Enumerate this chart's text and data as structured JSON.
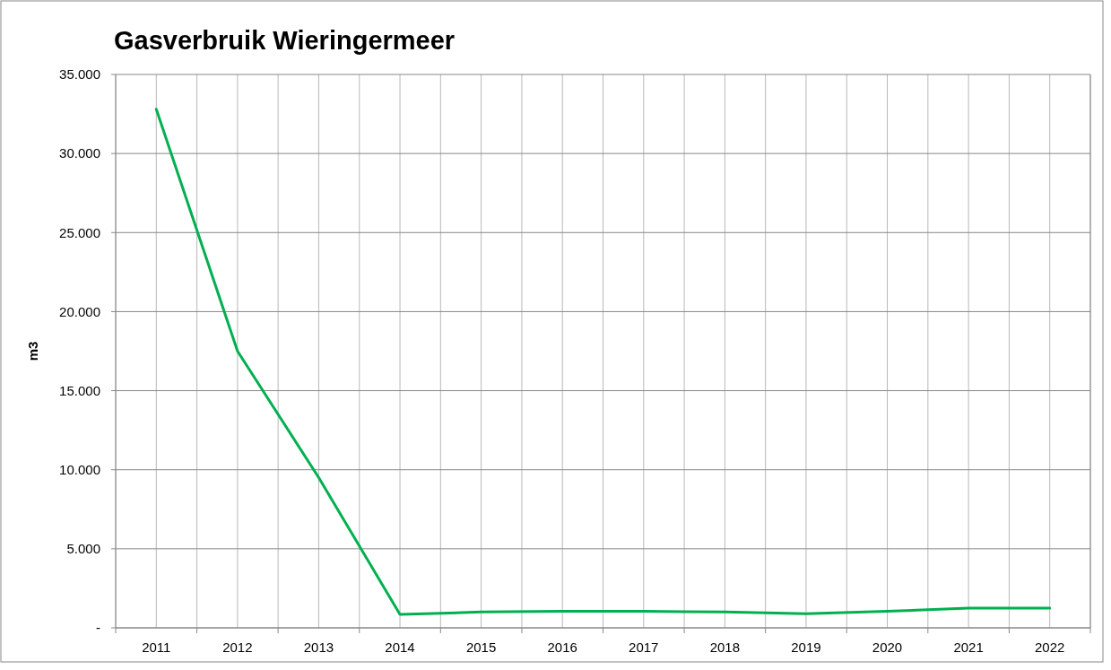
{
  "chart_data": {
    "type": "line",
    "title": "Gasverbruik Wieringermeer",
    "ylabel": "m3",
    "categories": [
      "2011",
      "2012",
      "2013",
      "2014",
      "2015",
      "2016",
      "2017",
      "2018",
      "2019",
      "2020",
      "2021",
      "2022"
    ],
    "series": [
      {
        "color": "#00b050",
        "values": [
          32800,
          17500,
          9500,
          850,
          1000,
          1050,
          1050,
          1000,
          900,
          1050,
          1250,
          1250
        ]
      }
    ],
    "ylim": [
      0,
      35000
    ],
    "yticks": [
      {
        "value": 0,
        "label": "-"
      },
      {
        "value": 5000,
        "label": "5.000"
      },
      {
        "value": 10000,
        "label": "10.000"
      },
      {
        "value": 15000,
        "label": "15.000"
      },
      {
        "value": 20000,
        "label": "20.000"
      },
      {
        "value": 25000,
        "label": "25.000"
      },
      {
        "value": 30000,
        "label": "30.000"
      },
      {
        "value": 35000,
        "label": "35.000"
      }
    ],
    "grid": true,
    "marker": "none",
    "line_style": "solid"
  }
}
